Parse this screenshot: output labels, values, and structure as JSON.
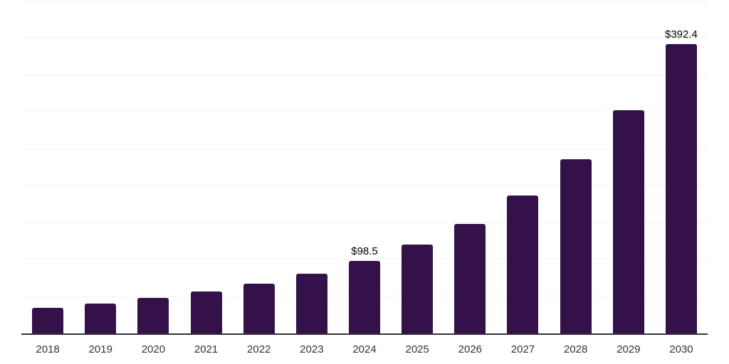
{
  "chart_data": {
    "type": "bar",
    "title": "",
    "xlabel": "",
    "ylabel": "",
    "categories": [
      "2018",
      "2019",
      "2020",
      "2021",
      "2022",
      "2023",
      "2024",
      "2025",
      "2026",
      "2027",
      "2028",
      "2029",
      "2030"
    ],
    "values": [
      34.3,
      40.9,
      48.1,
      56.7,
      67.7,
      80.6,
      98.5,
      120.1,
      148.4,
      186.8,
      236.2,
      302.9,
      392.4
    ],
    "data_labels": {
      "2024": "$98.5",
      "2030": "$392.4"
    },
    "ylim": [
      0,
      450
    ],
    "gridline_step": 50,
    "grid": "horizontal-only",
    "legend": "none",
    "y_tick_labels_visible": false,
    "colors": {
      "bar": "#341149",
      "gridline": "#f2f2f2",
      "axis_line": "#333333",
      "tick_label": "#333333",
      "value_label": "#000000",
      "background": "#ffffff"
    }
  }
}
